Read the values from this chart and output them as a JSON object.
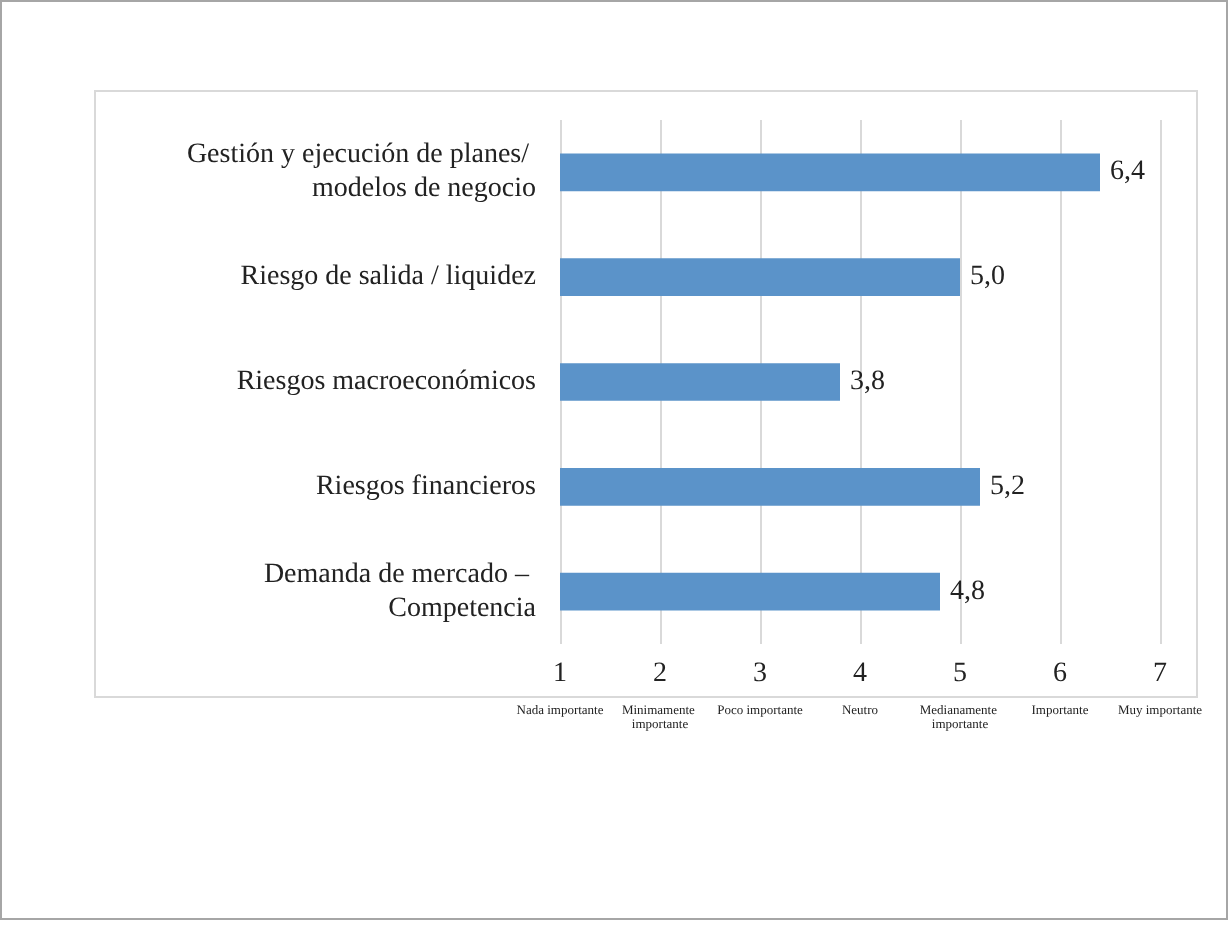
{
  "chart_data": {
    "type": "bar",
    "orientation": "horizontal",
    "categories": [
      "Gestión y ejecución de planes/ modelos de negocio",
      "Riesgo de salida / liquidez",
      "Riesgos macroeconómicos",
      "Riesgos financieros",
      "Demanda de mercado – Competencia"
    ],
    "values": [
      6.4,
      5.0,
      3.8,
      5.2,
      4.8
    ],
    "value_labels": [
      "6,4",
      "5,0",
      "3,8",
      "5,2",
      "4,8"
    ],
    "color": "#5b93c9",
    "xlim": [
      1,
      7
    ],
    "xticks": [
      1,
      2,
      3,
      4,
      5,
      6,
      7
    ],
    "annotations": [
      "Nada importante",
      "Minimamente importante",
      "Poco importante",
      "Neutro",
      "Medianamente importante",
      "Importante",
      "Muy importante"
    ],
    "grid": "x"
  }
}
